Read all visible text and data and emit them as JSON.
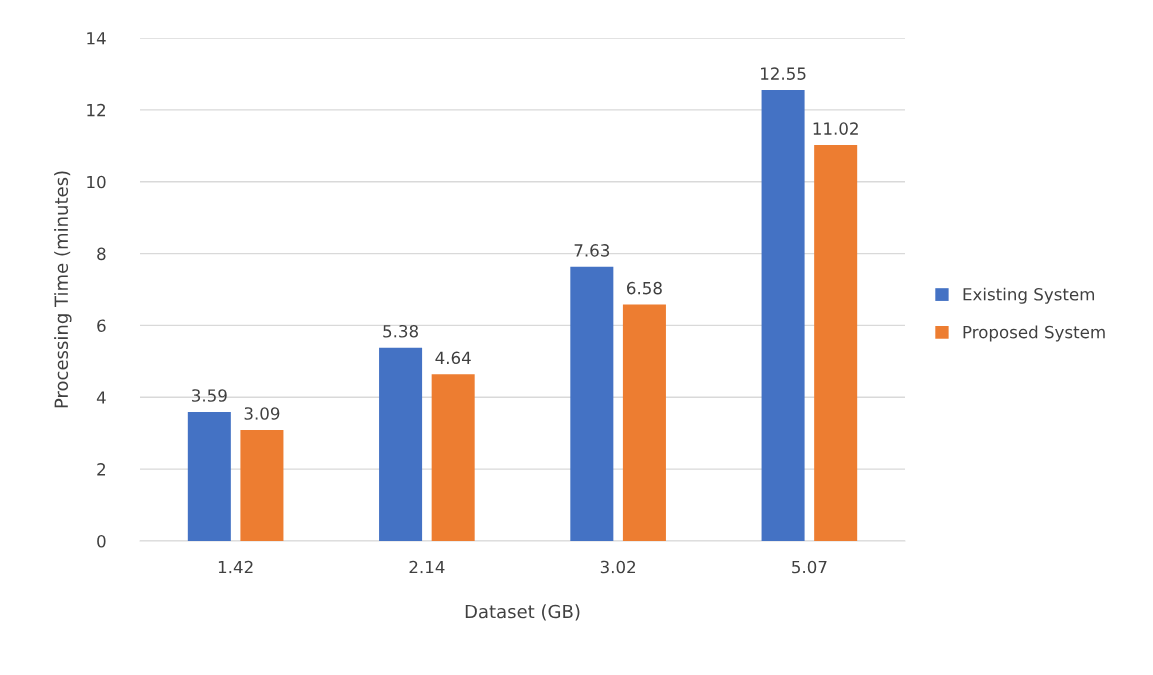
{
  "chart_data": {
    "type": "bar",
    "xlabel": "Dataset (GB)",
    "ylabel": "Processing Time (minutes)",
    "categories": [
      "1.42",
      "2.14",
      "3.02",
      "5.07"
    ],
    "series": [
      {
        "name": "Existing System",
        "color": "#4472c4",
        "values": [
          3.59,
          5.38,
          7.63,
          12.55
        ]
      },
      {
        "name": "Proposed System",
        "color": "#ed7d31",
        "values": [
          3.09,
          4.64,
          6.58,
          11.02
        ]
      }
    ],
    "ylim": [
      0,
      14
    ],
    "yticks": [
      0,
      2,
      4,
      6,
      8,
      10,
      12,
      14
    ],
    "grid": "y",
    "legend": "right",
    "data_labels": true
  }
}
